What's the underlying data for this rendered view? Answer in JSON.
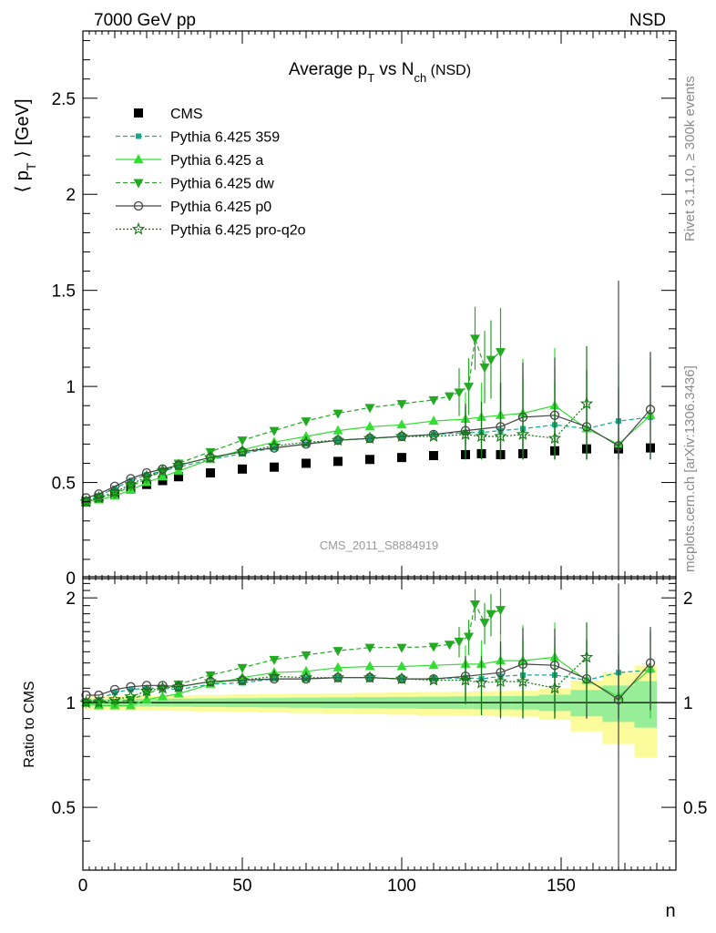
{
  "header": {
    "left": "7000 GeV pp",
    "right": "NSD",
    "rivet_note": "Rivet 3.1.10, ≥ 300k events",
    "mcplots_note": "mcplots.cern.ch [arXiv:1306.3436]",
    "watermark": "CMS_2011_S8884919"
  },
  "chart_data": [
    {
      "type": "scatter",
      "panel": "main",
      "title": "Average p_T vs N_ch (NSD)",
      "ylabel": "⟨ p_T ⟩ [GeV]",
      "xlabel": "n",
      "xlim": [
        0,
        186
      ],
      "ylim": [
        0,
        2.85
      ],
      "xticks": [
        0,
        50,
        100,
        150
      ],
      "yticks": [
        0.5,
        1,
        1.5,
        2,
        2.5
      ],
      "legend_position": "top-left",
      "series": [
        {
          "name": "CMS",
          "color": "#000000",
          "marker": "square",
          "x": [
            1,
            5,
            10,
            15,
            20,
            25,
            30,
            40,
            50,
            60,
            70,
            80,
            90,
            100,
            110,
            120,
            125,
            131,
            138,
            148,
            158,
            168,
            178
          ],
          "y": [
            0.4,
            0.42,
            0.44,
            0.47,
            0.49,
            0.51,
            0.53,
            0.55,
            0.57,
            0.58,
            0.6,
            0.61,
            0.62,
            0.63,
            0.64,
            0.645,
            0.65,
            0.645,
            0.65,
            0.665,
            0.675,
            0.675,
            0.68
          ]
        },
        {
          "name": "Pythia 6.425 359",
          "color": "#16a88a",
          "marker": "square-small",
          "dash": "5,3",
          "x": [
            1,
            5,
            10,
            15,
            20,
            25,
            30,
            40,
            50,
            60,
            70,
            80,
            90,
            100,
            110,
            120,
            125,
            131,
            138,
            148,
            158,
            168,
            178
          ],
          "y": [
            0.4,
            0.43,
            0.47,
            0.51,
            0.54,
            0.56,
            0.58,
            0.62,
            0.65,
            0.68,
            0.7,
            0.72,
            0.73,
            0.74,
            0.75,
            0.76,
            0.76,
            0.77,
            0.78,
            0.8,
            0.78,
            0.82,
            0.84
          ]
        },
        {
          "name": "Pythia 6.425 a",
          "color": "#33dd33",
          "marker": "triangle-up",
          "x": [
            1,
            5,
            10,
            15,
            20,
            25,
            30,
            40,
            50,
            60,
            70,
            80,
            90,
            100,
            110,
            120,
            125,
            131,
            138,
            148,
            158,
            168,
            178
          ],
          "y": [
            0.4,
            0.41,
            0.43,
            0.46,
            0.5,
            0.53,
            0.56,
            0.62,
            0.67,
            0.71,
            0.74,
            0.77,
            0.79,
            0.8,
            0.82,
            0.83,
            0.84,
            0.85,
            0.86,
            0.9,
            0.78,
            0.7,
            0.85
          ]
        },
        {
          "name": "Pythia 6.425 dw",
          "color": "#22aa22",
          "marker": "triangle-down",
          "dash": "5,3",
          "x": [
            1,
            5,
            10,
            15,
            20,
            25,
            30,
            40,
            50,
            60,
            70,
            80,
            90,
            100,
            110,
            115,
            118,
            121,
            123,
            126,
            128,
            131
          ],
          "y": [
            0.4,
            0.42,
            0.44,
            0.48,
            0.52,
            0.56,
            0.6,
            0.66,
            0.72,
            0.77,
            0.82,
            0.86,
            0.89,
            0.91,
            0.93,
            0.95,
            0.97,
            1.0,
            1.25,
            1.1,
            1.14,
            1.18
          ]
        },
        {
          "name": "Pythia 6.425 p0",
          "color": "#444444",
          "marker": "open-circle",
          "x": [
            1,
            5,
            10,
            15,
            20,
            25,
            30,
            40,
            50,
            60,
            70,
            80,
            90,
            100,
            110,
            120,
            131,
            138,
            148,
            158,
            168,
            178
          ],
          "y": [
            0.42,
            0.44,
            0.48,
            0.52,
            0.55,
            0.57,
            0.59,
            0.63,
            0.66,
            0.68,
            0.7,
            0.72,
            0.73,
            0.74,
            0.75,
            0.77,
            0.79,
            0.84,
            0.85,
            0.79,
            0.69,
            0.88
          ]
        },
        {
          "name": "Pythia 6.425 pro-q2o",
          "color": "#117711",
          "marker": "star",
          "dash": "2,2",
          "x": [
            1,
            5,
            10,
            15,
            20,
            25,
            30,
            40,
            50,
            60,
            70,
            80,
            90,
            100,
            110,
            120,
            125,
            131,
            138,
            148,
            158
          ],
          "y": [
            0.4,
            0.42,
            0.45,
            0.49,
            0.53,
            0.56,
            0.59,
            0.63,
            0.66,
            0.69,
            0.71,
            0.72,
            0.73,
            0.74,
            0.74,
            0.75,
            0.74,
            0.74,
            0.75,
            0.73,
            0.91
          ]
        }
      ]
    },
    {
      "type": "scatter",
      "panel": "ratio",
      "ylabel": "Ratio to CMS",
      "xlabel": "n",
      "xlim": [
        0,
        186
      ],
      "ylim": [
        0.33,
        2.3
      ],
      "yticks": [
        0.5,
        1,
        2
      ],
      "reference_line": 1,
      "series": [
        {
          "name": "Pythia 6.425 359",
          "color": "#16a88a",
          "x": [
            1,
            5,
            10,
            15,
            20,
            25,
            30,
            40,
            50,
            60,
            70,
            80,
            90,
            100,
            110,
            120,
            125,
            131,
            138,
            148,
            158,
            168,
            178
          ],
          "y": [
            1.0,
            1.02,
            1.07,
            1.09,
            1.1,
            1.1,
            1.09,
            1.13,
            1.14,
            1.17,
            1.17,
            1.18,
            1.18,
            1.17,
            1.17,
            1.18,
            1.17,
            1.19,
            1.2,
            1.2,
            1.16,
            1.22,
            1.24
          ]
        },
        {
          "name": "Pythia 6.425 a",
          "color": "#33dd33",
          "x": [
            1,
            5,
            10,
            15,
            20,
            25,
            30,
            40,
            50,
            60,
            70,
            80,
            90,
            100,
            110,
            120,
            125,
            131,
            138,
            148,
            158,
            168,
            178
          ],
          "y": [
            1.0,
            0.98,
            0.98,
            0.98,
            1.02,
            1.04,
            1.06,
            1.13,
            1.18,
            1.22,
            1.23,
            1.26,
            1.27,
            1.27,
            1.28,
            1.29,
            1.29,
            1.32,
            1.32,
            1.35,
            1.16,
            1.04,
            1.25
          ]
        },
        {
          "name": "Pythia 6.425 dw",
          "color": "#22aa22",
          "x": [
            1,
            5,
            10,
            15,
            20,
            25,
            30,
            40,
            50,
            60,
            70,
            80,
            90,
            100,
            110,
            115,
            118,
            121,
            123,
            126,
            128,
            131
          ],
          "y": [
            1.0,
            1.0,
            1.0,
            1.02,
            1.06,
            1.1,
            1.13,
            1.2,
            1.26,
            1.33,
            1.37,
            1.41,
            1.44,
            1.44,
            1.45,
            1.47,
            1.5,
            1.55,
            1.92,
            1.7,
            1.8,
            1.85
          ]
        },
        {
          "name": "Pythia 6.425 p0",
          "color": "#444444",
          "x": [
            1,
            5,
            10,
            15,
            20,
            25,
            30,
            40,
            50,
            60,
            70,
            80,
            90,
            100,
            110,
            120,
            131,
            138,
            148,
            158,
            168,
            178
          ],
          "y": [
            1.05,
            1.05,
            1.09,
            1.11,
            1.12,
            1.12,
            1.11,
            1.15,
            1.16,
            1.17,
            1.17,
            1.18,
            1.18,
            1.17,
            1.17,
            1.19,
            1.22,
            1.29,
            1.28,
            1.17,
            1.02,
            1.3
          ]
        },
        {
          "name": "Pythia 6.425 pro-q2o",
          "color": "#117711",
          "x": [
            1,
            5,
            10,
            15,
            20,
            25,
            30,
            40,
            50,
            60,
            70,
            80,
            90,
            100,
            110,
            120,
            125,
            131,
            138,
            148,
            158
          ],
          "y": [
            1.0,
            1.0,
            1.02,
            1.04,
            1.08,
            1.1,
            1.11,
            1.15,
            1.16,
            1.19,
            1.18,
            1.18,
            1.18,
            1.17,
            1.16,
            1.16,
            1.14,
            1.15,
            1.15,
            1.1,
            1.35
          ]
        }
      ]
    }
  ]
}
